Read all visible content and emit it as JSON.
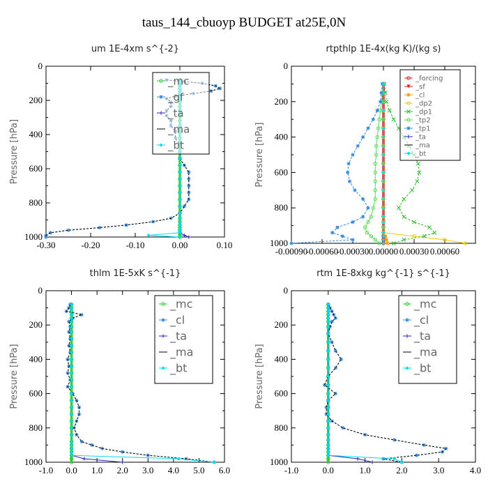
{
  "figure_title": "taus_144_cbuoyp  BUDGET at25E,0N",
  "chart_data": [
    {
      "type": "line",
      "title": "um   1E-4xm s^{-2}",
      "ylabel": "Pressure [hPa]",
      "xlim": [
        -0.3,
        0.1
      ],
      "ylim": [
        1000,
        0
      ],
      "xticks": [
        "-0.30",
        "-0.20",
        "-0.10",
        "0.00",
        "0.10"
      ],
      "xtick_values": [
        -0.3,
        -0.2,
        -0.1,
        0.0,
        0.1
      ],
      "yticks": [
        "0",
        "200",
        "400",
        "600",
        "800",
        "1000"
      ],
      "legend": [
        "_mc",
        "_gf",
        "_ta",
        "_ma",
        "_bt"
      ],
      "pressure": [
        80,
        90,
        100,
        115,
        130,
        145,
        160,
        175,
        190,
        210,
        235,
        260,
        290,
        320,
        350,
        380,
        420,
        460,
        500,
        540,
        580,
        620,
        660,
        700,
        740,
        780,
        820,
        860,
        890,
        910,
        930,
        945,
        960,
        975,
        990,
        1000
      ],
      "series": [
        {
          "name": "_mc",
          "color": "#33cc33",
          "marker": "o",
          "values": [
            0,
            0,
            0,
            0,
            0,
            0,
            0,
            0,
            0,
            0,
            0,
            0,
            0,
            0,
            0,
            0,
            0,
            0,
            0,
            0,
            0,
            0,
            0,
            0,
            0,
            0,
            0,
            0,
            0,
            0,
            0,
            0,
            0,
            0,
            0,
            0
          ]
        },
        {
          "name": "_gf",
          "color": "#3388dd",
          "marker": "*",
          "values": [
            -0.03,
            0.01,
            0.05,
            0.08,
            0.09,
            0.07,
            0.03,
            -0.01,
            -0.03,
            -0.02,
            -0.02,
            -0.03,
            -0.03,
            -0.02,
            -0.02,
            -0.01,
            -0.01,
            0.0,
            0.0,
            0.0,
            0.01,
            0.02,
            0.02,
            0.02,
            0.02,
            0.02,
            0.01,
            0.0,
            -0.02,
            -0.06,
            -0.12,
            -0.18,
            -0.25,
            -0.29,
            -0.3,
            -0.3
          ]
        },
        {
          "name": "_ta",
          "color": "#2222bb",
          "marker": "+",
          "values": [
            0,
            0,
            0,
            0,
            0,
            0,
            0,
            0,
            0,
            0,
            0,
            0,
            0,
            0,
            0,
            0,
            0,
            0,
            0,
            0,
            0,
            0,
            0,
            0,
            0,
            0,
            0,
            0,
            0,
            0,
            0,
            0,
            0,
            0,
            0.01,
            0.02
          ]
        },
        {
          "name": "_ma",
          "color": "#000000",
          "marker": "-",
          "values": [
            -0.03,
            0.01,
            0.05,
            0.08,
            0.09,
            0.07,
            0.03,
            -0.01,
            -0.03,
            -0.02,
            -0.02,
            -0.03,
            -0.03,
            -0.02,
            -0.02,
            -0.01,
            -0.01,
            0.0,
            0.0,
            0.0,
            0.01,
            0.02,
            0.02,
            0.02,
            0.02,
            0.02,
            0.01,
            0.0,
            -0.02,
            -0.06,
            -0.12,
            -0.18,
            -0.25,
            -0.29,
            -0.3,
            -0.3
          ]
        },
        {
          "name": "_bt",
          "color": "#00ddee",
          "marker": "d",
          "values": [
            0,
            0,
            0,
            0,
            0,
            0,
            0,
            0,
            0,
            0,
            0,
            0,
            0,
            0,
            0,
            0,
            0,
            0,
            0,
            0,
            0,
            0,
            0,
            0,
            0,
            0,
            0,
            0,
            0,
            0,
            0,
            0,
            0,
            0,
            -0.07,
            0
          ]
        }
      ]
    },
    {
      "type": "line",
      "title": "rtpthlp   1E-4x(kg K)/(kg s)",
      "ylabel": "Pressure [hPa]",
      "xlim": [
        -0.0009,
        0.0009
      ],
      "ylim": [
        1000,
        0
      ],
      "xticks": [
        "-0.00090",
        "-0.00060",
        "-0.00030",
        "0.00000",
        "0.00030",
        "0.00060"
      ],
      "xtick_values": [
        -0.0009,
        -0.0006,
        -0.0003,
        0.0,
        0.0003,
        0.0006
      ],
      "yticks": [
        "0",
        "200",
        "400",
        "600",
        "800",
        "1000"
      ],
      "legend": [
        "_forcing",
        "_sf",
        "_cl",
        "_dp2",
        "_dp1",
        "_tp2",
        "_tp1",
        "_ta",
        "_ma",
        "_bt"
      ],
      "pressure": [
        100,
        150,
        200,
        250,
        300,
        350,
        400,
        450,
        500,
        550,
        600,
        650,
        700,
        750,
        800,
        850,
        880,
        910,
        940,
        960,
        980,
        1000
      ],
      "series": [
        {
          "name": "_forcing",
          "color": "#dd2222",
          "marker": "o",
          "values": [
            0,
            0,
            0,
            0,
            0,
            0,
            0,
            0,
            0,
            0,
            0,
            0,
            0,
            0,
            0,
            0,
            0,
            0,
            0,
            0,
            0,
            0
          ]
        },
        {
          "name": "_sf",
          "color": "#dd2222",
          "marker": "v",
          "values": [
            0,
            0,
            0,
            0,
            0,
            0,
            0,
            0,
            0,
            0,
            0,
            0,
            0,
            0,
            0,
            0,
            0,
            0,
            0,
            0,
            0,
            0
          ]
        },
        {
          "name": "_cl",
          "color": "#ee9900",
          "marker": "*",
          "values": [
            0,
            0,
            0,
            0,
            0,
            0,
            0,
            0,
            0,
            0,
            0,
            0,
            0,
            0,
            0,
            0,
            0,
            0,
            0,
            2e-05,
            3e-05,
            4e-05
          ]
        },
        {
          "name": "_dp2",
          "color": "#eecc00",
          "marker": "o",
          "values": [
            0,
            0,
            0,
            0,
            0,
            0,
            0,
            0,
            0,
            0,
            0,
            0,
            0,
            0,
            0,
            0,
            0,
            0,
            0,
            0.0003,
            0.0006,
            0.0008
          ]
        },
        {
          "name": "_dp1",
          "color": "#33bb33",
          "marker": "x",
          "values": [
            1e-05,
            2e-05,
            3e-05,
            6e-05,
            0.0001,
            0.00015,
            0.0002,
            0.00025,
            0.0003,
            0.00034,
            0.00035,
            0.00033,
            0.00028,
            0.0002,
            0.00015,
            0.0002,
            0.0003,
            0.00045,
            0.0005,
            0.0004,
            0.0002,
            0.0001
          ]
        },
        {
          "name": "_tp2",
          "color": "#55dd55",
          "marker": "o",
          "values": [
            0,
            -1e-05,
            -2e-05,
            -3e-05,
            -4e-05,
            -5e-05,
            -6e-05,
            -7e-05,
            -7e-05,
            -8e-05,
            -8e-05,
            -8e-05,
            -8e-05,
            -8e-05,
            -0.0001,
            -0.00012,
            -0.00015,
            -0.00018,
            -0.00016,
            -0.00012,
            -8e-05,
            -4e-05
          ]
        },
        {
          "name": "_tp1",
          "color": "#3388dd",
          "marker": "*",
          "values": [
            -1e-05,
            -2e-05,
            -3e-05,
            -6e-05,
            -0.0001,
            -0.00015,
            -0.0002,
            -0.00025,
            -0.0003,
            -0.00034,
            -0.00035,
            -0.00033,
            -0.00028,
            -0.0002,
            -0.00015,
            -0.0002,
            -0.0003,
            -0.00045,
            -0.0005,
            -0.0004,
            -0.0003,
            -0.0009
          ]
        },
        {
          "name": "_ta",
          "color": "#2222bb",
          "marker": "+",
          "values": [
            0,
            0,
            0,
            0,
            0,
            0,
            0,
            0,
            0,
            0,
            0,
            0,
            0,
            0,
            0,
            0,
            0,
            0,
            0,
            0,
            0,
            0
          ]
        },
        {
          "name": "_ma",
          "color": "#000000",
          "marker": "-",
          "values": [
            0,
            0,
            0,
            0,
            0,
            0,
            0,
            0,
            0,
            0,
            0,
            0,
            0,
            0,
            0,
            0,
            0,
            0,
            0,
            0,
            0,
            0
          ]
        },
        {
          "name": "_bt",
          "color": "#00ddee",
          "marker": "d",
          "values": [
            0,
            0,
            0,
            0,
            0,
            0,
            0,
            0,
            0,
            0,
            0,
            0,
            0,
            0,
            0,
            0,
            0,
            0,
            0,
            0,
            0,
            0
          ]
        }
      ]
    },
    {
      "type": "line",
      "title": "thlm   1E-5xK  s^{-1}",
      "ylabel": "Pressure [hPa]",
      "xlim": [
        -1.0,
        6.0
      ],
      "ylim": [
        1000,
        0
      ],
      "xticks": [
        "-1.0",
        "0.0",
        "1.0",
        "2.0",
        "3.0",
        "4.0",
        "5.0",
        "6.0"
      ],
      "xtick_values": [
        -1.0,
        0.0,
        1.0,
        2.0,
        3.0,
        4.0,
        5.0,
        6.0
      ],
      "yticks": [
        "0",
        "200",
        "400",
        "600",
        "800",
        "1000"
      ],
      "legend": [
        "_mc",
        "_cl",
        "_ta",
        "_ma",
        "_bt"
      ],
      "pressure": [
        80,
        100,
        120,
        140,
        160,
        180,
        210,
        240,
        280,
        320,
        360,
        400,
        440,
        480,
        520,
        560,
        600,
        640,
        680,
        720,
        760,
        800,
        840,
        880,
        900,
        920,
        940,
        960,
        980,
        1000
      ],
      "series": [
        {
          "name": "_mc",
          "color": "#33cc33",
          "marker": "o",
          "values": [
            0,
            0,
            0,
            0,
            0,
            0,
            0,
            0,
            0,
            0,
            0,
            0,
            0,
            0,
            0,
            0,
            0,
            0,
            0,
            0,
            0,
            0,
            0,
            0,
            0,
            0,
            0,
            0,
            0,
            0
          ]
        },
        {
          "name": "_cl",
          "color": "#3388dd",
          "marker": "*",
          "values": [
            -0.05,
            -0.1,
            -0.2,
            0.4,
            0.05,
            -0.1,
            -0.05,
            -0.1,
            -0.05,
            -0.1,
            -0.05,
            -0.15,
            -0.1,
            -0.15,
            -0.05,
            -0.15,
            0.05,
            0.2,
            0.3,
            0.3,
            0.2,
            0.1,
            0.2,
            0.4,
            0.8,
            1.2,
            2.0,
            3.0,
            4.5,
            5.6
          ]
        },
        {
          "name": "_ta",
          "color": "#2222bb",
          "marker": "+",
          "values": [
            0,
            0,
            0,
            0,
            0,
            0,
            0,
            0,
            0,
            0,
            0,
            0,
            0,
            0,
            0,
            0,
            0,
            0,
            0,
            0,
            0,
            0,
            0,
            0,
            0,
            0,
            0,
            0,
            0.5,
            2.0
          ]
        },
        {
          "name": "_ma",
          "color": "#000000",
          "marker": "-",
          "values": [
            -0.05,
            -0.1,
            -0.2,
            0.4,
            0.05,
            -0.1,
            -0.05,
            -0.1,
            -0.05,
            -0.1,
            -0.05,
            -0.15,
            -0.1,
            -0.15,
            -0.05,
            -0.15,
            0.05,
            0.2,
            0.3,
            0.3,
            0.2,
            0.1,
            0.2,
            0.4,
            0.8,
            1.2,
            2.0,
            3.0,
            4.5,
            5.6
          ]
        },
        {
          "name": "_bt",
          "color": "#00ddee",
          "marker": "d",
          "values": [
            0,
            0,
            0,
            0,
            0,
            0,
            0,
            0,
            0,
            0,
            0,
            0,
            0,
            0,
            0,
            0,
            0,
            0,
            0,
            0,
            0,
            0,
            0,
            0,
            0,
            0,
            0,
            0,
            4.2,
            5.6
          ]
        }
      ]
    },
    {
      "type": "line",
      "title": "rtm   1E-8xkg kg^{-1} s^{-1}",
      "ylabel": "Pressure [hPa]",
      "xlim": [
        -1.0,
        4.0
      ],
      "ylim": [
        1000,
        0
      ],
      "xticks": [
        "-1.0",
        "0.0",
        "1.0",
        "2.0",
        "3.0",
        "4.0"
      ],
      "xtick_values": [
        -1.0,
        0.0,
        1.0,
        2.0,
        3.0,
        4.0
      ],
      "yticks": [
        "0",
        "200",
        "400",
        "600",
        "800",
        "1000"
      ],
      "legend": [
        "_mc",
        "_cl",
        "_ta",
        "_ma",
        "_bt"
      ],
      "pressure": [
        80,
        100,
        120,
        140,
        160,
        180,
        210,
        250,
        300,
        350,
        400,
        450,
        500,
        550,
        600,
        640,
        680,
        720,
        760,
        800,
        840,
        870,
        900,
        920,
        940,
        960,
        980,
        1000
      ],
      "series": [
        {
          "name": "_mc",
          "color": "#33cc33",
          "marker": "o",
          "values": [
            0,
            0,
            0,
            0,
            0,
            0,
            0,
            0,
            0,
            0,
            0,
            0,
            0,
            0,
            0,
            0,
            0,
            0,
            0,
            0,
            0,
            0,
            0,
            0,
            0,
            0,
            0,
            0
          ]
        },
        {
          "name": "_cl",
          "color": "#3388dd",
          "marker": "*",
          "values": [
            0.0,
            0.05,
            0.1,
            0.15,
            0.2,
            0.1,
            0.05,
            0.0,
            0.1,
            0.2,
            0.35,
            0.2,
            0.0,
            -0.1,
            0.2,
            0.0,
            -0.05,
            -0.05,
            0.1,
            0.4,
            1.0,
            1.8,
            2.6,
            3.2,
            3.1,
            2.4,
            1.5,
            2.0
          ]
        },
        {
          "name": "_ta",
          "color": "#2222bb",
          "marker": "+",
          "values": [
            0,
            0,
            0,
            0,
            0,
            0,
            0,
            0,
            0,
            0,
            0,
            0,
            0,
            0,
            0,
            0,
            0,
            0,
            0,
            0,
            0,
            0,
            0,
            0,
            0,
            0,
            0.8,
            1.2
          ]
        },
        {
          "name": "_ma",
          "color": "#000000",
          "marker": "-",
          "values": [
            0.0,
            0.05,
            0.1,
            0.15,
            0.2,
            0.1,
            0.05,
            0.0,
            0.1,
            0.2,
            0.35,
            0.2,
            0.0,
            -0.1,
            0.2,
            0.0,
            -0.05,
            -0.05,
            0.1,
            0.4,
            1.0,
            1.8,
            2.6,
            3.2,
            3.1,
            2.4,
            1.5,
            2.0
          ]
        },
        {
          "name": "_bt",
          "color": "#00ddee",
          "marker": "d",
          "values": [
            0,
            0,
            0,
            0,
            0,
            0,
            0,
            0,
            0,
            0,
            0,
            0,
            0,
            0,
            0,
            0,
            0,
            0,
            0,
            0,
            0,
            0,
            0,
            0,
            0,
            0,
            1.8,
            2.0
          ]
        }
      ]
    }
  ]
}
